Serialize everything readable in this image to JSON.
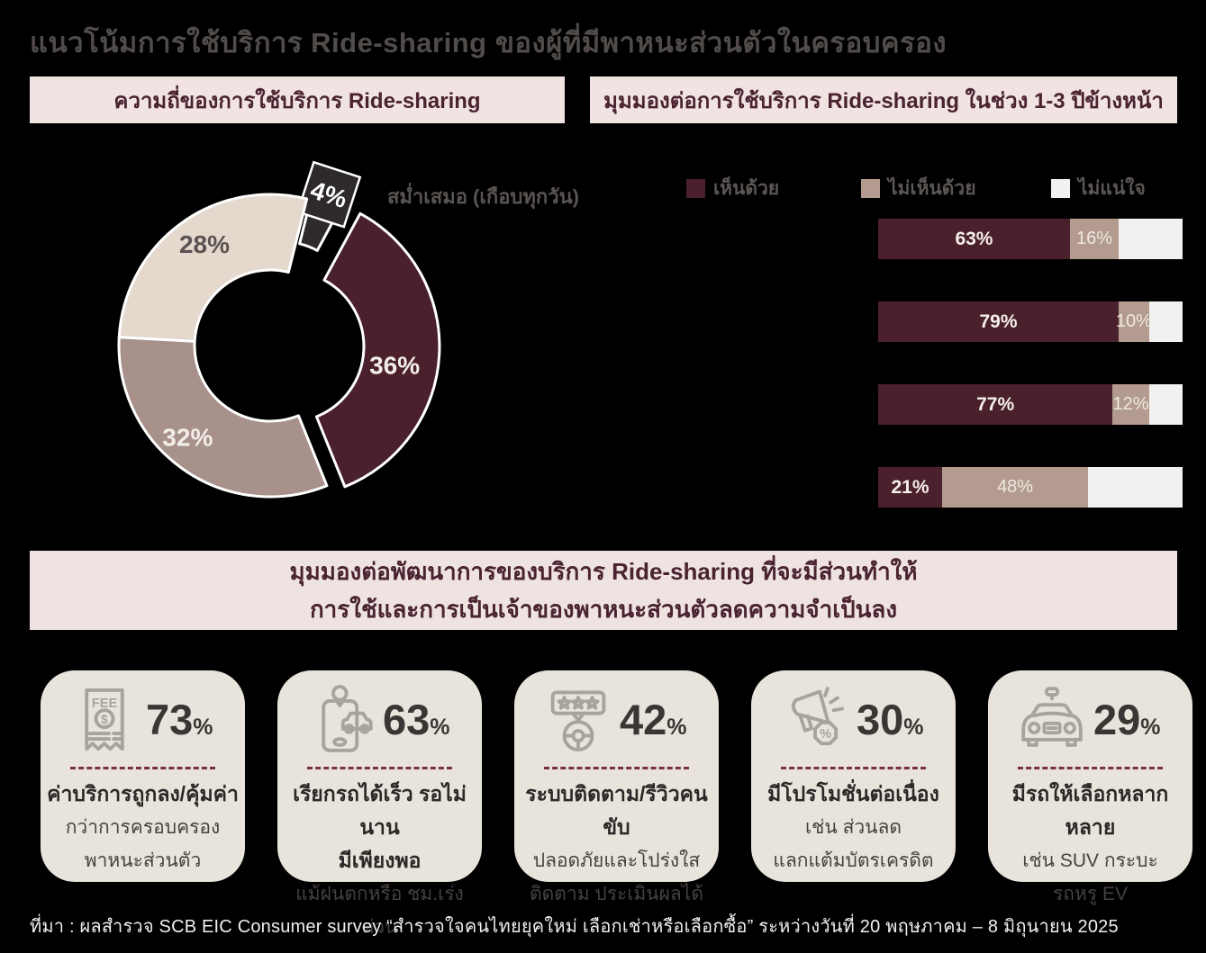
{
  "title": "แนวโน้มการใช้บริการ Ride-sharing ของผู้ที่มีพาหนะส่วนตัวในครอบครอง",
  "source": "ที่มา : ผลสำรวจ SCB EIC Consumer survey “สำรวจใจคนไทยยุคใหม่ เลือกเช่าหรือเลือกซื้อ” ระหว่างวันที่ 20 พฤษภาคม – 8 มิถุนายน 2025",
  "sections": {
    "frequency_header": "ความถี่ของการใช้บริการ  Ride-sharing",
    "outlook_header": "มุมมองต่อการใช้บริการ  Ride-sharing  ในช่วง  1-3  ปีข้างหน้า",
    "banner_line1": "มุมมองต่อพัฒนาการของบริการ  Ride-sharing  ที่จะมีส่วนทำให้",
    "banner_line2": "การใช้และการเป็นเจ้าของพาหนะส่วนตัวลดความจำเป็นลง"
  },
  "colors": {
    "background": "#000000",
    "panel_pink": "#f1e3e2",
    "maroon": "#4a202c",
    "tan": "#b39c8f",
    "taupe": "#a7918a",
    "beige": "#e5d8cd",
    "dark": "#2e2a2b",
    "offwhite": "#f3f1f0",
    "card_bg": "#e8e4db",
    "icon_gray": "#a9a49b",
    "divider_maroon": "#7a2f3f",
    "title_gray": "#514c4a"
  },
  "chart_data": [
    {
      "type": "pie",
      "subtype": "donut",
      "title": "ความถี่ของการใช้บริการ Ride-sharing",
      "unit": "%",
      "annotation": "สม่ำเสมอ (เกือบทุกวัน)",
      "slices": [
        {
          "key": "daily",
          "label": "สม่ำเสมอ (เกือบทุกวัน)",
          "value": 4,
          "color": "#2e2a2b",
          "text_color": "#ffffff",
          "exploded": true
        },
        {
          "key": "slice-36",
          "label": "",
          "value": 36,
          "color": "#4a202c",
          "text_color": "#f4eee9",
          "exploded": true
        },
        {
          "key": "slice-32",
          "label": "",
          "value": 32,
          "color": "#a7918a",
          "text_color": "#f4eee9",
          "exploded": false
        },
        {
          "key": "slice-28",
          "label": "",
          "value": 28,
          "color": "#e5d8cd",
          "text_color": "#595352",
          "exploded": false
        }
      ]
    },
    {
      "type": "bar",
      "orientation": "horizontal-stacked",
      "title": "มุมมองต่อการใช้บริการ Ride-sharing ในช่วง 1-3 ปีข้างหน้า",
      "xlim": [
        0,
        100
      ],
      "unit": "%",
      "legend_position": "top",
      "series": [
        {
          "key": "agree",
          "name": "เห็นด้วย",
          "color": "#4a202c",
          "values": [
            63,
            79,
            77,
            21
          ],
          "labels_shown": true
        },
        {
          "key": "disagree",
          "name": "ไม่เห็นด้วย",
          "color": "#b39c8f",
          "values": [
            16,
            10,
            12,
            48
          ],
          "labels_shown": true
        },
        {
          "key": "unsure",
          "name": "ไม่แน่ใจ",
          "color": "#f3f1f0",
          "values": [
            21,
            11,
            11,
            31
          ],
          "labels_shown": false
        }
      ]
    }
  ],
  "cards": [
    {
      "icon": "fee-receipt-icon",
      "value": "73",
      "unit": "%",
      "title_lines": [
        "ค่าบริการถูกลง/คุ้มค่า"
      ],
      "sub_lines": [
        "กว่าการครอบครอง",
        "พาหนะส่วนตัว"
      ]
    },
    {
      "icon": "phone-car-icon",
      "value": "63",
      "unit": "%",
      "title_lines": [
        "เรียกรถได้เร็ว รอไม่นาน",
        "มีเพียงพอ"
      ],
      "sub_lines": [
        "แม้ฝนตกหรือ ชม.เร่งด่วน"
      ]
    },
    {
      "icon": "driver-review-icon",
      "value": "42",
      "unit": "%",
      "title_lines": [
        "ระบบติดตาม/รีวิวคนขับ"
      ],
      "sub_lines": [
        "ปลอดภัยและโปร่งใส",
        "ติดตาม ประเมินผลได้"
      ]
    },
    {
      "icon": "megaphone-discount-icon",
      "value": "30",
      "unit": "%",
      "title_lines": [
        "มีโปรโมชั่นต่อเนื่อง"
      ],
      "sub_lines": [
        "เช่น ส่วนลด",
        "แลกแต้มบัตรเครดิต"
      ]
    },
    {
      "icon": "car-front-icon",
      "value": "29",
      "unit": "%",
      "title_lines": [
        "มีรถให้เลือกหลากหลาย"
      ],
      "sub_lines": [
        "เช่น SUV กระบะ",
        "รถหรู EV"
      ]
    }
  ]
}
